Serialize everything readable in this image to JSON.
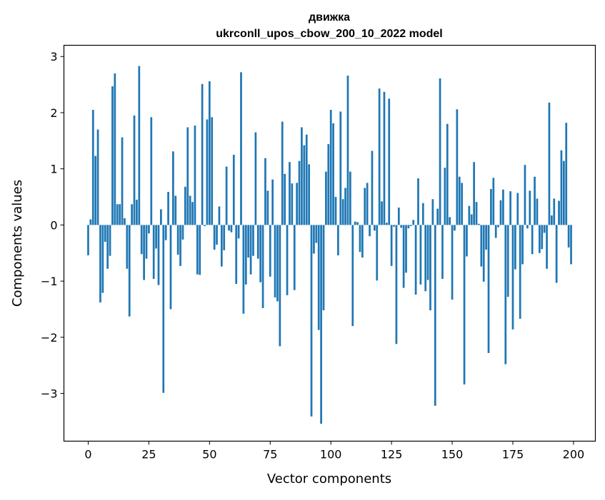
{
  "chart_data": {
    "type": "bar",
    "title_line1": "движка",
    "title_line2": "ukrconll_upos_cbow_200_10_2022 model",
    "xlabel": "Vector components",
    "ylabel": "Components values",
    "xlim": [
      -10,
      209
    ],
    "ylim": [
      -3.85,
      3.2
    ],
    "xticks": [
      0,
      25,
      50,
      75,
      100,
      125,
      150,
      175,
      200
    ],
    "xtick_labels": [
      "0",
      "25",
      "50",
      "75",
      "100",
      "125",
      "150",
      "175",
      "200"
    ],
    "yticks": [
      -3,
      -2,
      -1,
      0,
      1,
      2,
      3
    ],
    "ytick_labels": [
      "−3",
      "−2",
      "−1",
      "0",
      "1",
      "2",
      "3"
    ],
    "bar_color": "#1f77b4",
    "values": [
      -0.54,
      0.1,
      2.05,
      1.23,
      1.7,
      -1.38,
      -1.21,
      -0.3,
      -0.78,
      -0.55,
      2.47,
      2.7,
      0.37,
      0.37,
      1.56,
      0.12,
      -0.78,
      -1.63,
      0.37,
      1.95,
      0.45,
      2.83,
      -0.52,
      -0.98,
      -0.6,
      -0.15,
      1.92,
      -0.96,
      -0.42,
      -1.07,
      0.28,
      -2.99,
      -0.27,
      0.59,
      -1.5,
      1.31,
      0.52,
      -0.53,
      -0.73,
      -0.26,
      0.68,
      1.74,
      0.52,
      0.41,
      1.77,
      -0.88,
      -0.89,
      2.51,
      -0.02,
      1.88,
      2.56,
      1.92,
      -0.44,
      -0.35,
      0.33,
      -0.74,
      -0.45,
      1.04,
      -0.1,
      -0.13,
      1.25,
      -1.05,
      -0.24,
      2.72,
      -1.58,
      -1.06,
      -0.58,
      -0.88,
      -0.55,
      1.65,
      -0.6,
      -1.02,
      -1.48,
      1.19,
      0.61,
      -0.92,
      0.81,
      -1.29,
      -1.36,
      -2.16,
      1.84,
      0.91,
      -1.25,
      1.12,
      0.74,
      -1.16,
      0.75,
      1.14,
      1.74,
      1.42,
      1.61,
      1.08,
      -3.41,
      -0.51,
      -0.32,
      -1.87,
      -3.54,
      -1.52,
      0.95,
      1.44,
      2.05,
      1.81,
      0.5,
      -0.54,
      2.02,
      0.46,
      0.66,
      2.66,
      0.95,
      -1.8,
      0.06,
      0.05,
      -0.48,
      -0.58,
      0.66,
      0.75,
      -0.2,
      1.32,
      -0.1,
      -0.99,
      2.43,
      0.42,
      2.37,
      0.04,
      2.25,
      -0.73,
      -0.03,
      -2.12,
      0.31,
      -0.05,
      -1.12,
      -0.85,
      -0.06,
      -0.02,
      0.09,
      -1.24,
      0.83,
      -1.06,
      0.39,
      -1.18,
      -0.98,
      -1.52,
      0.46,
      -3.22,
      0.29,
      2.61,
      -0.96,
      1.02,
      1.8,
      0.14,
      -1.33,
      -0.1,
      2.06,
      0.86,
      0.75,
      -2.84,
      -0.56,
      0.34,
      0.19,
      1.12,
      0.41,
      0.02,
      -0.74,
      -1.01,
      -0.44,
      -2.28,
      0.64,
      0.84,
      -0.23,
      -0.04,
      0.44,
      0.63,
      -2.48,
      -1.28,
      0.6,
      -1.86,
      -0.79,
      0.57,
      -1.67,
      -0.7,
      1.07,
      -0.06,
      0.61,
      -0.52,
      0.86,
      0.47,
      -0.5,
      -0.43,
      -0.14,
      -0.78,
      2.18,
      0.17,
      0.47,
      -1.03,
      0.43,
      1.33,
      1.14,
      1.82,
      -0.4,
      -0.7
    ]
  }
}
